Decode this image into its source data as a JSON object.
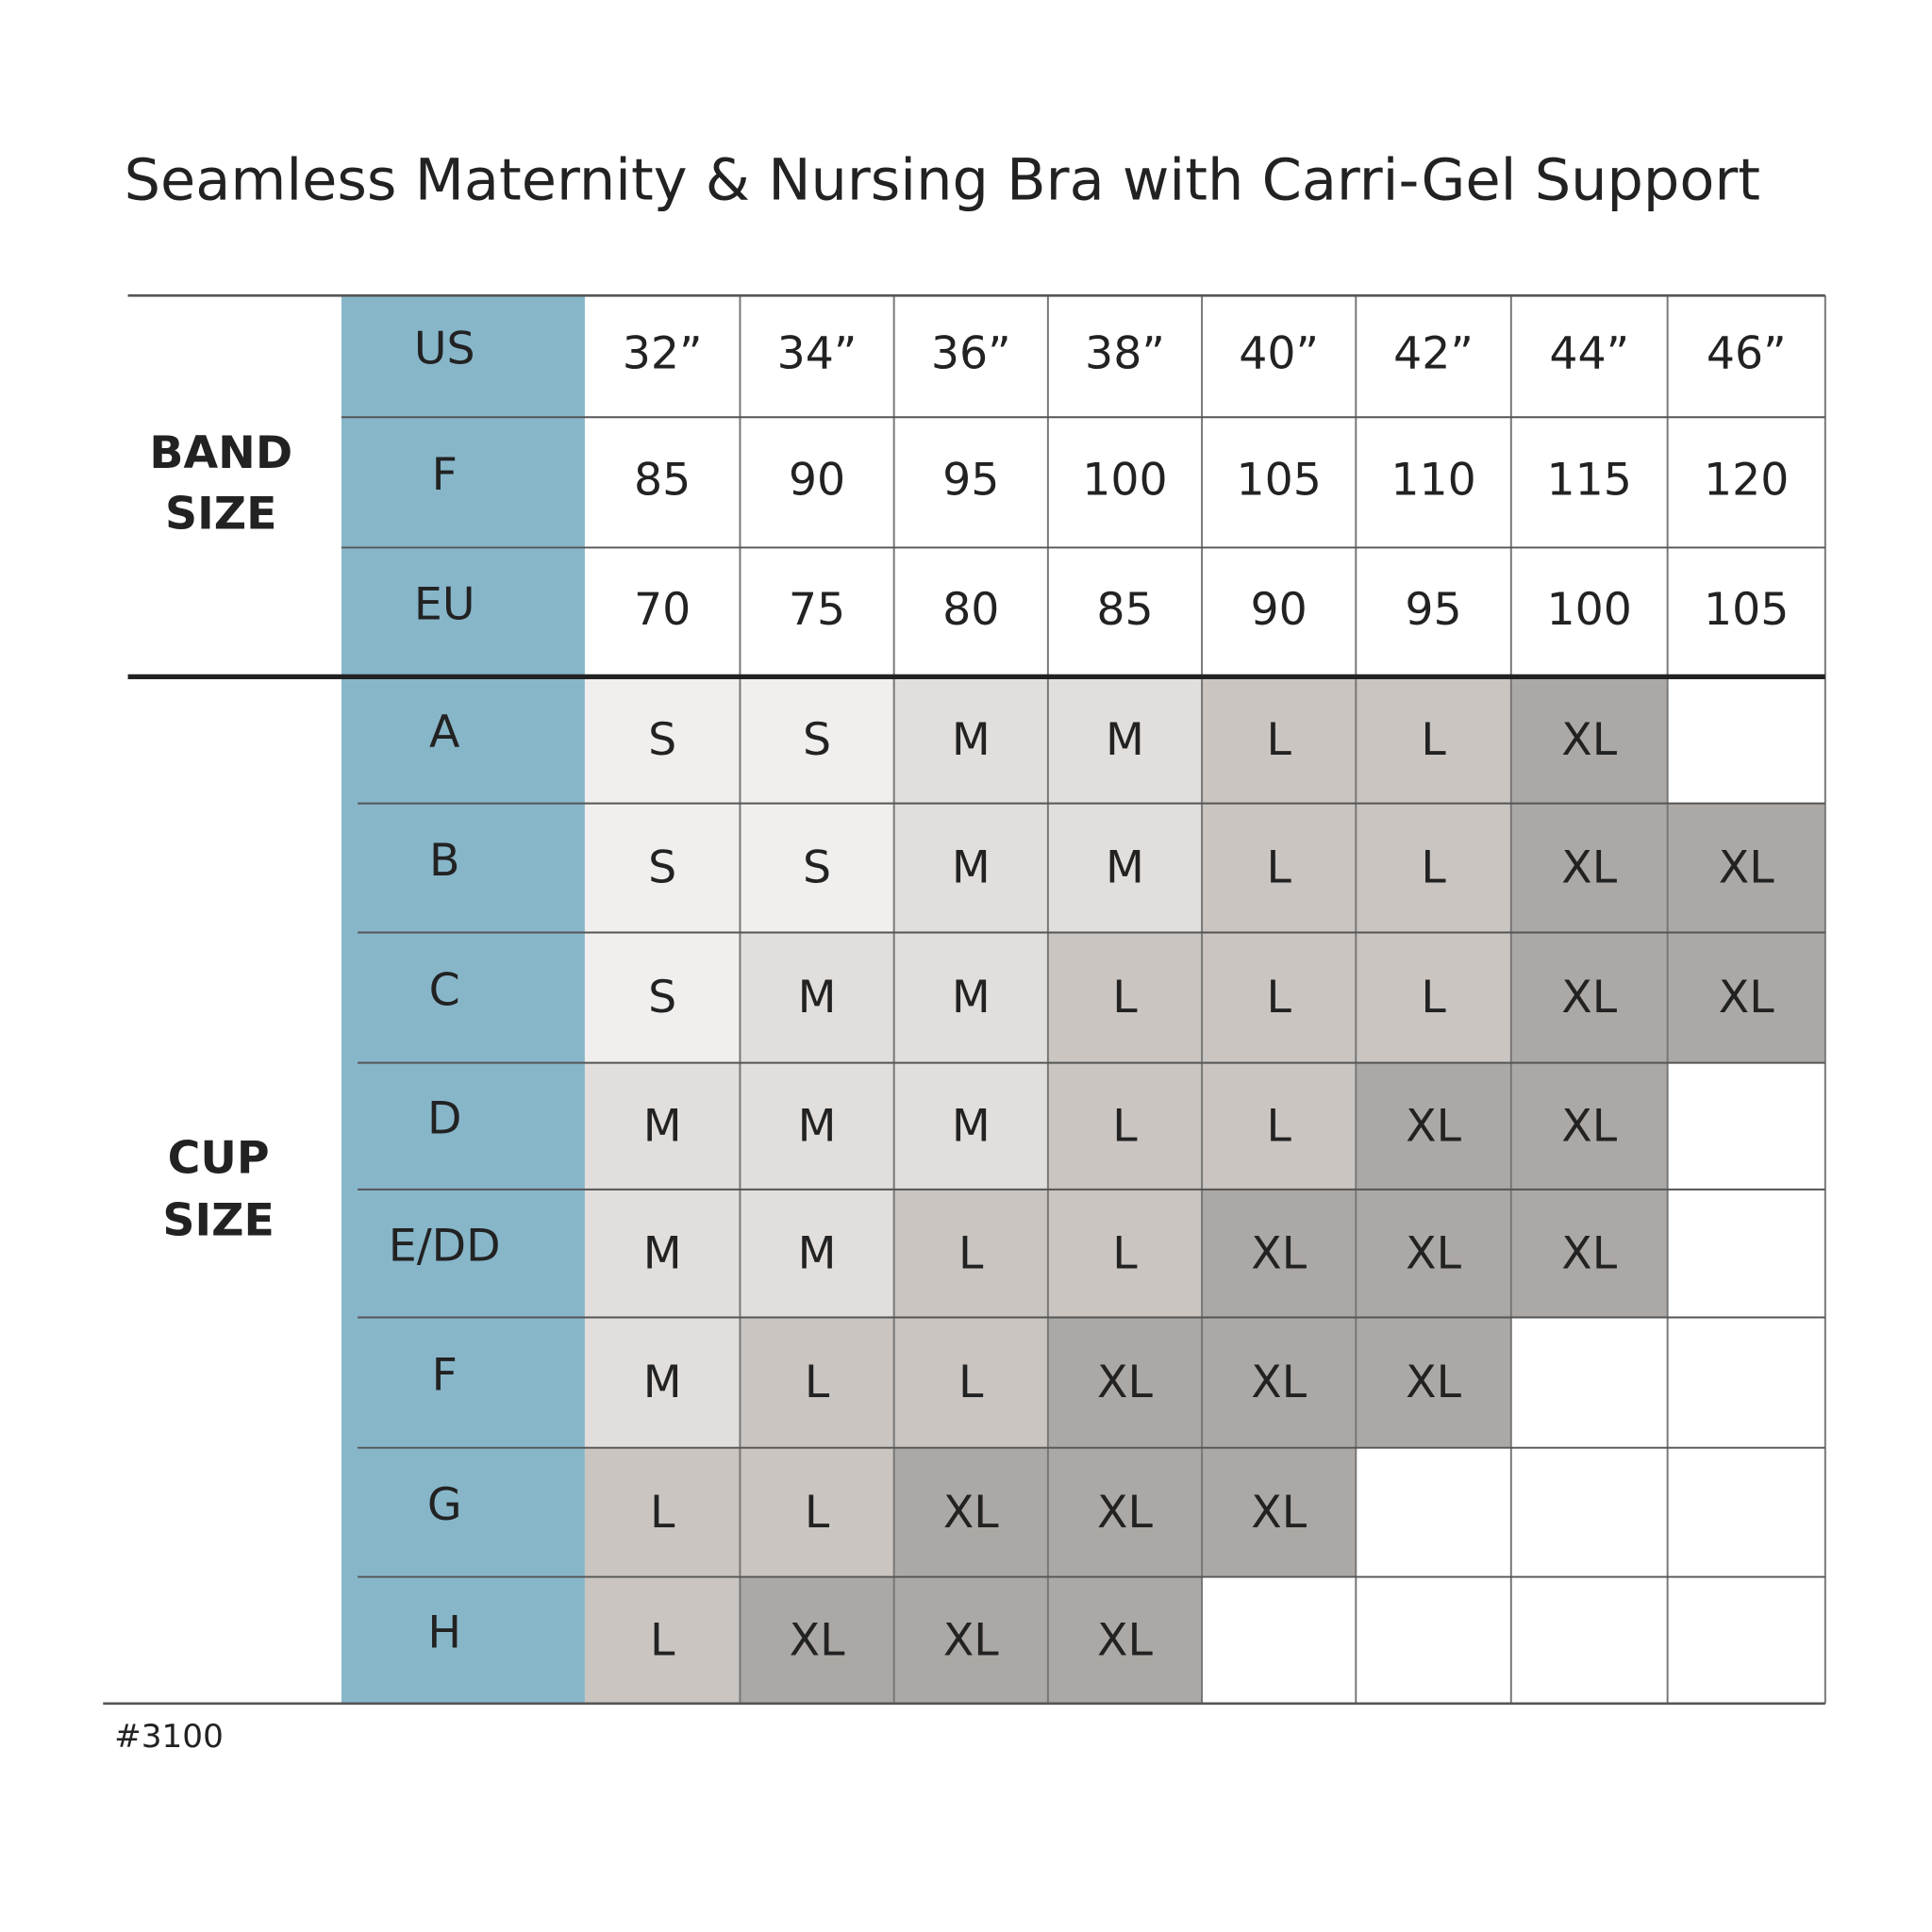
{
  "title": "Seamless Maternity & Nursing Bra with Carri-Gel Support",
  "band_label": [
    "BAND",
    "SIZE"
  ],
  "cup_label": [
    "CUP",
    "SIZE"
  ],
  "band_rows": [
    {
      "label": "US",
      "values": [
        "32”",
        "34”",
        "36”",
        "38”",
        "40”",
        "42”",
        "44”",
        "46”"
      ]
    },
    {
      "label": "F",
      "values": [
        "85",
        "90",
        "95",
        "100",
        "105",
        "110",
        "115",
        "120"
      ]
    },
    {
      "label": "EU",
      "values": [
        "70",
        "75",
        "80",
        "85",
        "90",
        "95",
        "100",
        "105"
      ]
    }
  ],
  "cup_rows": [
    {
      "label": "A",
      "values": [
        "S",
        "S",
        "M",
        "M",
        "L",
        "L",
        "XL",
        null
      ]
    },
    {
      "label": "B",
      "values": [
        "S",
        "S",
        "M",
        "M",
        "L",
        "L",
        "XL",
        "XL"
      ]
    },
    {
      "label": "C",
      "values": [
        "S",
        "M",
        "M",
        "L",
        "L",
        "L",
        "XL",
        "XL"
      ]
    },
    {
      "label": "D",
      "values": [
        "M",
        "M",
        "M",
        "L",
        "L",
        "XL",
        "XL",
        null
      ]
    },
    {
      "label": "E/DD",
      "values": [
        "M",
        "M",
        "L",
        "L",
        "XL",
        "XL",
        "XL",
        null
      ]
    },
    {
      "label": "F",
      "values": [
        "M",
        "L",
        "L",
        "XL",
        "XL",
        "XL",
        null,
        null
      ]
    },
    {
      "label": "G",
      "values": [
        "L",
        "L",
        "XL",
        "XL",
        "XL",
        null,
        null,
        null
      ]
    },
    {
      "label": "H",
      "values": [
        "L",
        "XL",
        "XL",
        "XL",
        null,
        null,
        null,
        null
      ]
    }
  ],
  "size_colors": {
    "S": "#f1efed",
    "M": "#e2dedb",
    "L": "#cac5c1",
    "XL": "#aca8a5"
  },
  "label_color": "#87b6c9",
  "footnote": "#3100"
}
